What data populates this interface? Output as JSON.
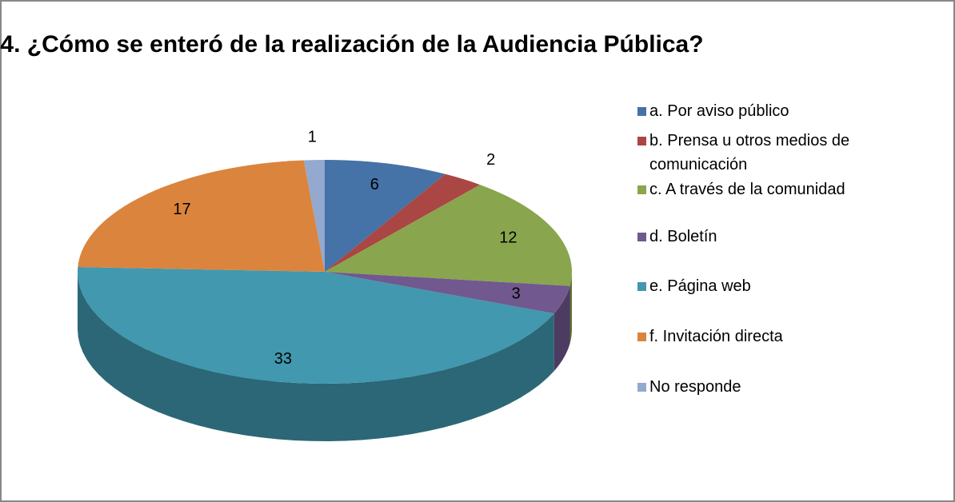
{
  "chart_data": {
    "type": "pie3d",
    "title": "4. ¿Cómo se enteró de la realización de la Audiencia Pública?",
    "categories": [
      "a. Por aviso público",
      "b. Prensa u otros medios de comunicación",
      "c. A través de la comunidad",
      "d. Boletín",
      "e. Página web",
      "f. Invitación directa",
      "No responde"
    ],
    "values": [
      6,
      2,
      12,
      3,
      33,
      17,
      1
    ],
    "colors": [
      "#4572a7",
      "#aa4643",
      "#89a54e",
      "#71588f",
      "#4198af",
      "#db843d",
      "#93a9cf"
    ],
    "legend": "right"
  }
}
